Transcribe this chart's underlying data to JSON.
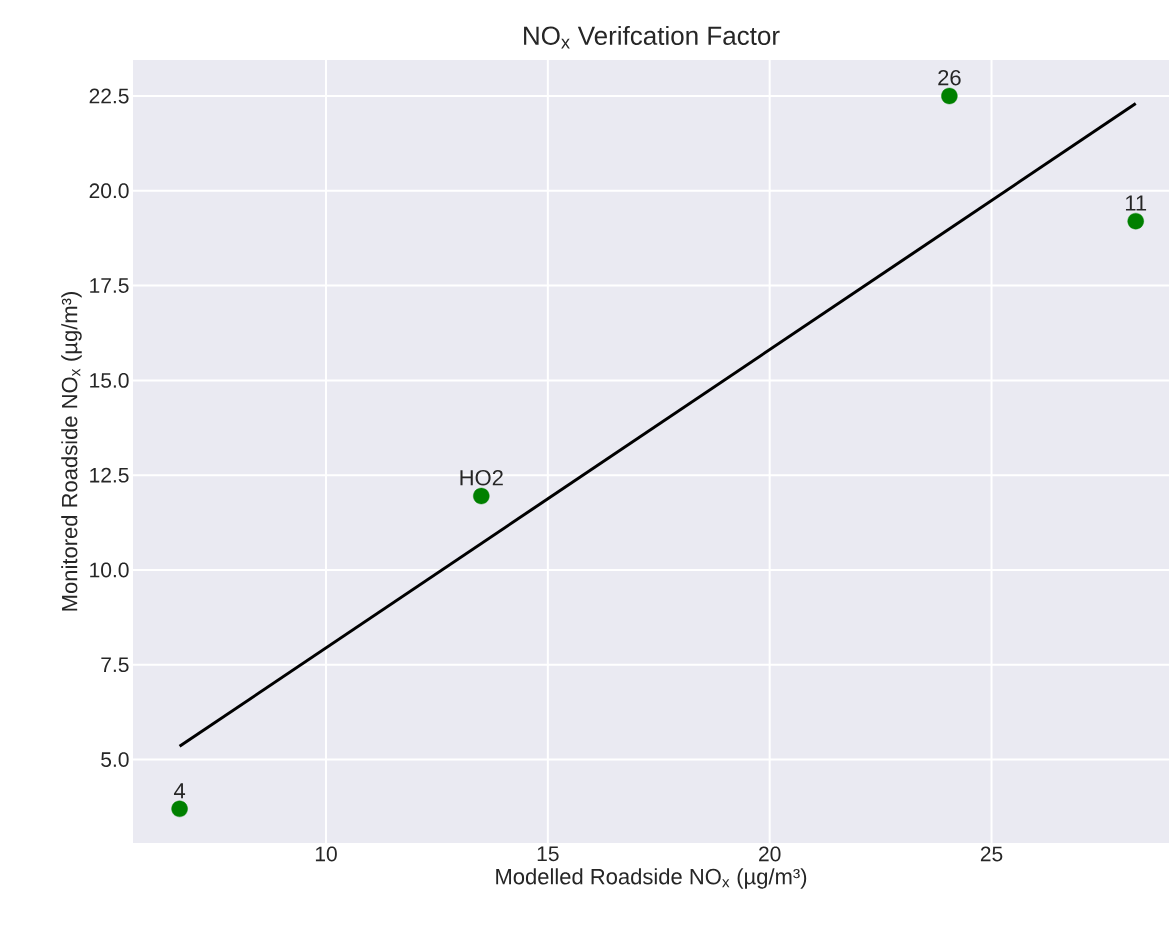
{
  "chart_data": {
    "type": "scatter",
    "title": "NO$_{x}$ Verifcation Factor",
    "xlabel": "Modelled Roadside NO$_{x}$ (µg/m³)",
    "ylabel": "Monitored Roadside NO$_{x}$ (µg/m³)",
    "series": [
      {
        "color": "#008000",
        "marker": "circle",
        "x": [
          6.7,
          13.5,
          24.05,
          28.25
        ],
        "values": [
          3.7,
          11.95,
          22.5,
          19.2
        ]
      },
      {
        "type": "line",
        "color": "#000000",
        "marker": "none",
        "x": [
          6.7,
          28.25
        ],
        "values": [
          5.35,
          22.3
        ]
      }
    ],
    "xlim": [
      5.65,
      29.0
    ],
    "ylim": [
      2.8,
      23.45
    ],
    "xticks": [
      10,
      15,
      20,
      25
    ],
    "yticks": [
      {
        "value": 5,
        "label": "5.0"
      },
      7.5,
      {
        "value": 10,
        "label": "10.0"
      },
      12.5,
      {
        "value": 15,
        "label": "15.0"
      },
      17.5,
      {
        "value": 20,
        "label": "20.0"
      },
      22.5
    ],
    "grid": true,
    "annotations": [
      {
        "text": "4",
        "x": 6.7,
        "y": 3.7
      },
      {
        "text": "HO2",
        "x": 13.5,
        "y": 11.95
      },
      {
        "text": "26",
        "x": 24.05,
        "y": 22.5
      },
      {
        "text": "11",
        "x": 28.25,
        "y": 19.2
      }
    ]
  }
}
